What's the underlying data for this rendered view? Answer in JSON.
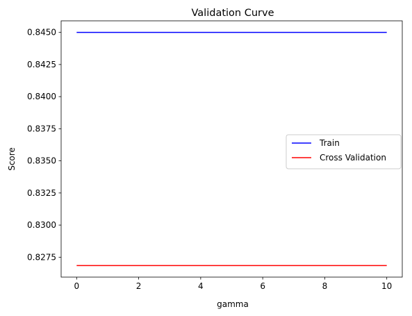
{
  "chart_data": {
    "type": "line",
    "title": "Validation Curve",
    "xlabel": "gamma",
    "ylabel": "Score",
    "x": [
      0,
      10
    ],
    "series": [
      {
        "name": "Train",
        "color": "#0000ff",
        "values": [
          0.845,
          0.845
        ]
      },
      {
        "name": "Cross Validation",
        "color": "#ff0000",
        "values": [
          0.82685,
          0.82685
        ]
      }
    ],
    "xlim": [
      -0.5,
      10.5
    ],
    "ylim": [
      0.82595,
      0.8459
    ],
    "xticks": [
      0,
      2,
      4,
      6,
      8,
      10
    ],
    "xtick_labels": [
      "0",
      "2",
      "4",
      "6",
      "8",
      "10"
    ],
    "yticks": [
      0.8275,
      0.83,
      0.8325,
      0.835,
      0.8375,
      0.84,
      0.8425,
      0.845
    ],
    "ytick_labels": [
      "0.8275",
      "0.8300",
      "0.8325",
      "0.8350",
      "0.8375",
      "0.8400",
      "0.8425",
      "0.8450"
    ],
    "grid": false,
    "legend_position": "center-right"
  }
}
